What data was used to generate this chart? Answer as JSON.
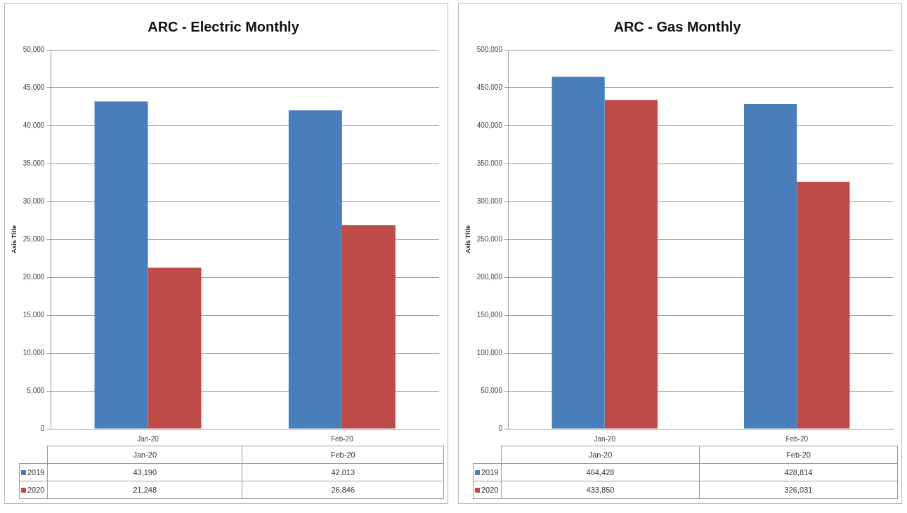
{
  "chart_data": [
    {
      "type": "bar",
      "title": "ARC - Electric Monthly",
      "ylabel": "Axis Title",
      "categories": [
        "Jan-20",
        "Feb-20"
      ],
      "series": [
        {
          "name": "2019",
          "color": "#4a7ebb",
          "values": [
            43190,
            42013
          ],
          "value_labels": [
            "43,190",
            "42,013"
          ]
        },
        {
          "name": "2020",
          "color": "#be4b48",
          "values": [
            21248,
            26846
          ],
          "value_labels": [
            "21,248",
            "26,846"
          ]
        }
      ],
      "ylim": [
        0,
        50000
      ],
      "yticks": [
        0,
        {
          "value": 5000,
          "label": "5,000"
        },
        {
          "value": 10000,
          "label": "10,000"
        },
        {
          "value": 15000,
          "label": "15,000"
        },
        {
          "value": 20000,
          "label": "20,000"
        },
        {
          "value": 25000,
          "label": "25,000"
        },
        {
          "value": 30000,
          "label": "30,000"
        },
        {
          "value": 35000,
          "label": "35,000"
        },
        {
          "value": 40000,
          "label": "40,000"
        },
        {
          "value": 45000,
          "label": "45,000"
        },
        {
          "value": 50000,
          "label": "50,000"
        }
      ],
      "grid": "y",
      "legend": "bottom"
    },
    {
      "type": "bar",
      "title": "ARC - Gas Monthly",
      "ylabel": "Axis Title",
      "categories": [
        "Jan-20",
        "Feb-20"
      ],
      "series": [
        {
          "name": "2019",
          "color": "#4a7ebb",
          "values": [
            464428,
            428814
          ],
          "value_labels": [
            "464,428",
            "428,814"
          ]
        },
        {
          "name": "2020",
          "color": "#be4b48",
          "values": [
            433850,
            326031
          ],
          "value_labels": [
            "433,850",
            "326,031"
          ]
        }
      ],
      "ylim": [
        0,
        500000
      ],
      "yticks": [
        0,
        {
          "value": 50000,
          "label": "50,000"
        },
        {
          "value": 100000,
          "label": "100,000"
        },
        {
          "value": 150000,
          "label": "150,000"
        },
        {
          "value": 200000,
          "label": "200,000"
        },
        {
          "value": 250000,
          "label": "250,000"
        },
        {
          "value": 300000,
          "label": "300,000"
        },
        {
          "value": 350000,
          "label": "350,000"
        },
        {
          "value": 400000,
          "label": "400,000"
        },
        {
          "value": 450000,
          "label": "450,000"
        },
        {
          "value": 500000,
          "label": "500,000"
        }
      ],
      "grid": "y",
      "legend": "bottom"
    }
  ]
}
